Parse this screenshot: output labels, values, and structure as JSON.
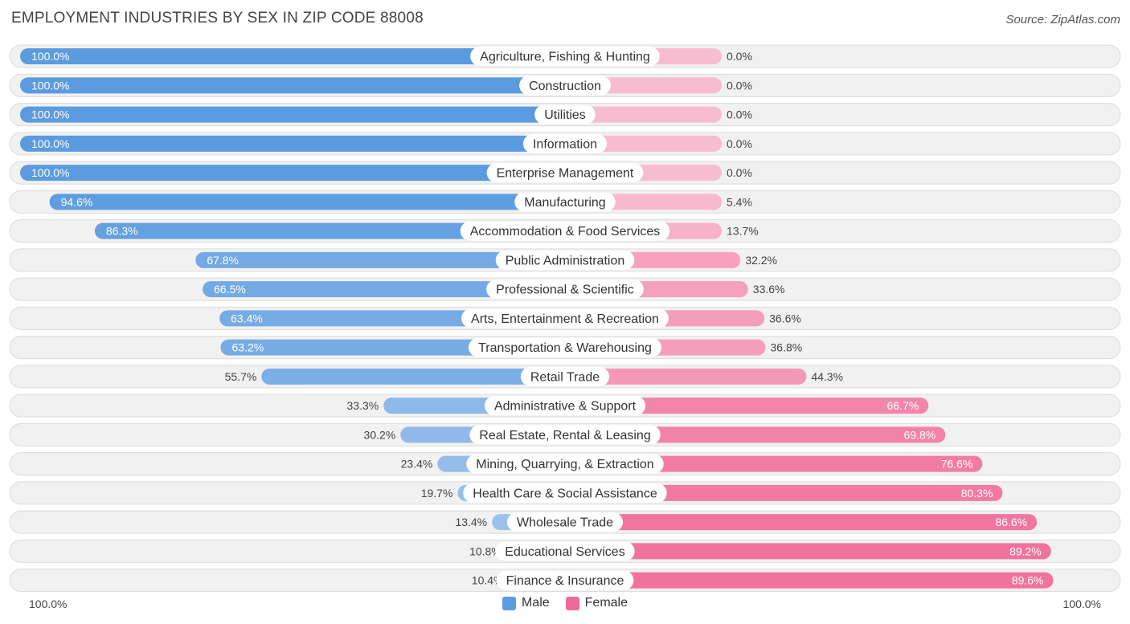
{
  "title": "EMPLOYMENT INDUSTRIES BY SEX IN ZIP CODE 88008",
  "source": "Source: ZipAtlas.com",
  "colors": {
    "male": "#5b9bdf",
    "female": "#f06a97"
  },
  "chart_data": {
    "type": "bar",
    "orientation": "horizontal-diverging",
    "categories": [
      "Agriculture, Fishing & Hunting",
      "Construction",
      "Utilities",
      "Information",
      "Enterprise Management",
      "Manufacturing",
      "Accommodation & Food Services",
      "Public Administration",
      "Professional & Scientific",
      "Arts, Entertainment & Recreation",
      "Transportation & Warehousing",
      "Retail Trade",
      "Administrative & Support",
      "Real Estate, Rental & Leasing",
      "Mining, Quarrying, & Extraction",
      "Health Care & Social Assistance",
      "Wholesale Trade",
      "Educational Services",
      "Finance & Insurance"
    ],
    "series": [
      {
        "name": "Male",
        "values": [
          100.0,
          100.0,
          100.0,
          100.0,
          100.0,
          94.6,
          86.3,
          67.8,
          66.5,
          63.4,
          63.2,
          55.7,
          33.3,
          30.2,
          23.4,
          19.7,
          13.4,
          10.8,
          10.4
        ],
        "labels": [
          "100.0%",
          "100.0%",
          "100.0%",
          "100.0%",
          "100.0%",
          "94.6%",
          "86.3%",
          "67.8%",
          "66.5%",
          "63.4%",
          "63.2%",
          "55.7%",
          "33.3%",
          "30.2%",
          "23.4%",
          "19.7%",
          "13.4%",
          "10.8%",
          "10.4%"
        ]
      },
      {
        "name": "Female",
        "values": [
          0.0,
          0.0,
          0.0,
          0.0,
          0.0,
          5.4,
          13.7,
          32.2,
          33.6,
          36.6,
          36.8,
          44.3,
          66.7,
          69.8,
          76.6,
          80.3,
          86.6,
          89.2,
          89.6
        ],
        "labels": [
          "0.0%",
          "0.0%",
          "0.0%",
          "0.0%",
          "0.0%",
          "5.4%",
          "13.7%",
          "32.2%",
          "33.6%",
          "36.6%",
          "36.8%",
          "44.3%",
          "66.7%",
          "69.8%",
          "76.6%",
          "80.3%",
          "86.6%",
          "89.2%",
          "89.6%"
        ]
      }
    ],
    "xlim": [
      0,
      100
    ],
    "axis_left_label": "100.0%",
    "axis_right_label": "100.0%",
    "legend": [
      "Male",
      "Female"
    ]
  }
}
